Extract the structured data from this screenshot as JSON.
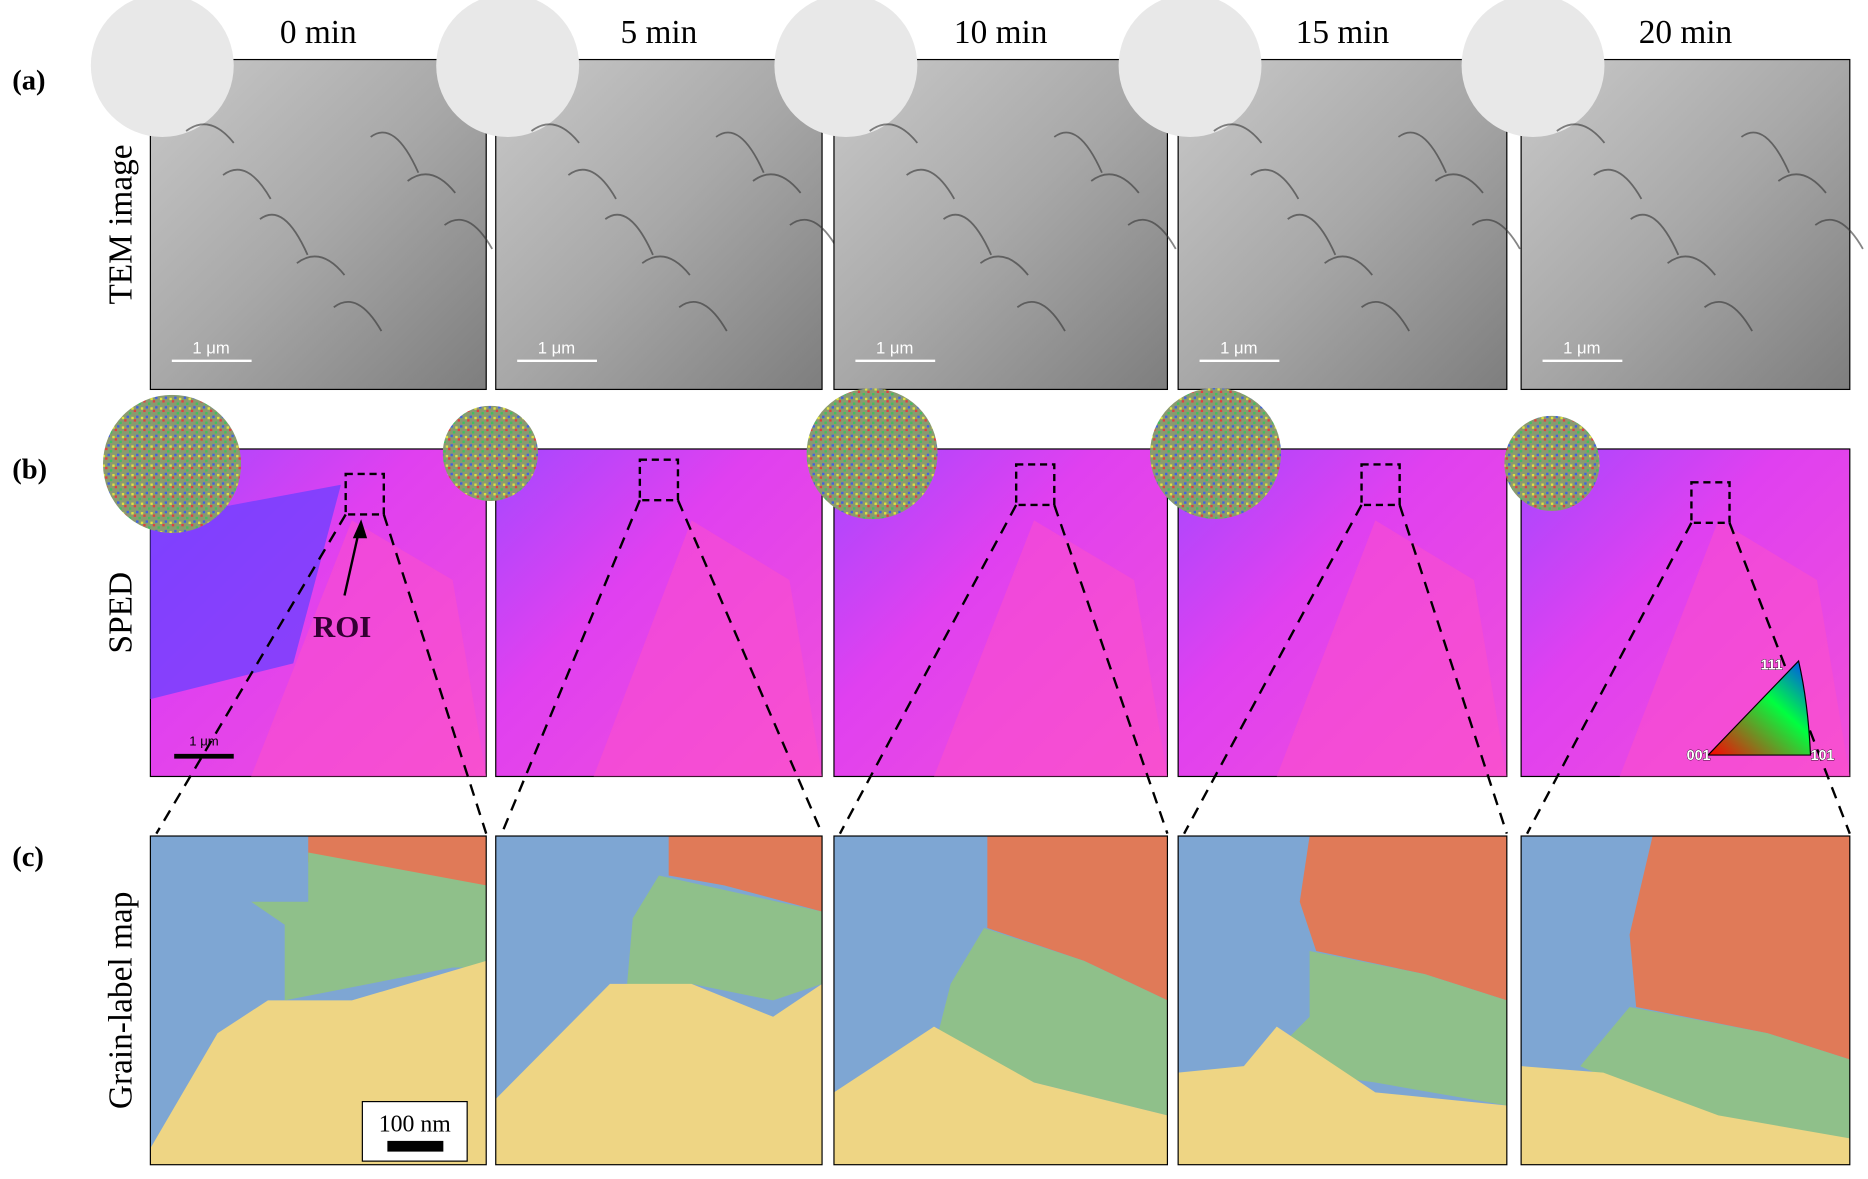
{
  "columns": [
    "0 min",
    "5 min",
    "10 min",
    "15 min",
    "20 min"
  ],
  "rows": [
    {
      "label": "(a)",
      "title": "TEM image"
    },
    {
      "label": "(b)",
      "title": "SPED"
    },
    {
      "label": "(c)",
      "title": "Grain-label map"
    }
  ],
  "tem_scale_bars": [
    "1 μm",
    "1 μm",
    "1 μm",
    "1 μm",
    "1 μm"
  ],
  "sped": {
    "scale_bar": "1 μm",
    "roi": "ROI",
    "ipf": {
      "corner_001": "001",
      "corner_101": "101",
      "corner_111": "111"
    }
  },
  "grain_map": {
    "scale_bar": "100 nm"
  }
}
